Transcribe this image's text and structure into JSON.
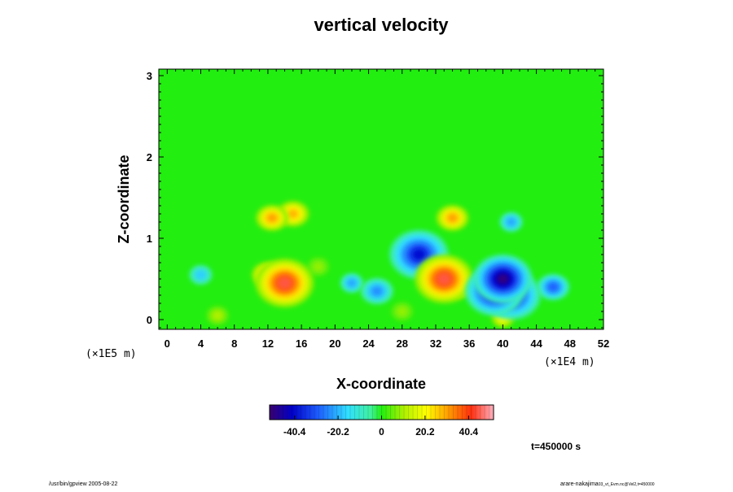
{
  "chart_data": {
    "type": "heatmap",
    "title": "vertical velocity",
    "xlabel": "X-coordinate",
    "ylabel": "Z-coordinate",
    "x_scale_label": "(×1E4 m)",
    "y_scale_label": "(×1E5 m)",
    "xlim": [
      -1,
      52
    ],
    "ylim": [
      -0.12,
      3.08
    ],
    "x_ticks": [
      0,
      4,
      8,
      12,
      16,
      20,
      24,
      28,
      32,
      36,
      40,
      44,
      48,
      52
    ],
    "y_ticks": [
      0,
      1,
      2,
      3
    ],
    "colorbar": {
      "range": [
        -52,
        52
      ],
      "ticks": [
        -40.4,
        -20.2,
        0,
        20.2,
        40.4
      ],
      "tick_labels": [
        "-40.4",
        "-20.2",
        "0",
        "20.2",
        "40.4"
      ]
    },
    "features": [
      {
        "x": 14,
        "z": 0.45,
        "value": 45
      },
      {
        "x": 12,
        "z": 0.55,
        "value": 30
      },
      {
        "x": 33,
        "z": 0.5,
        "value": 45
      },
      {
        "x": 34.5,
        "z": 0.42,
        "value": 35
      },
      {
        "x": 4,
        "z": 0.55,
        "value": -18
      },
      {
        "x": 22,
        "z": 0.45,
        "value": -22
      },
      {
        "x": 25,
        "z": 0.35,
        "value": -25
      },
      {
        "x": 40,
        "z": 0.5,
        "value": -50
      },
      {
        "x": 39,
        "z": 0.35,
        "value": -45
      },
      {
        "x": 41,
        "z": 0.3,
        "value": -40
      },
      {
        "x": 30,
        "z": 0.8,
        "value": -40
      },
      {
        "x": 46,
        "z": 0.4,
        "value": -30
      },
      {
        "x": 12.5,
        "z": 1.25,
        "value": 30
      },
      {
        "x": 15,
        "z": 1.3,
        "value": 28
      },
      {
        "x": 34,
        "z": 1.25,
        "value": 30
      },
      {
        "x": 41,
        "z": 1.2,
        "value": -22
      },
      {
        "x": 18,
        "z": 0.65,
        "value": 8
      },
      {
        "x": 6,
        "z": 0.05,
        "value": 10
      },
      {
        "x": 28,
        "z": 0.1,
        "value": 8
      },
      {
        "x": 40,
        "z": 0.02,
        "value": 20
      }
    ]
  },
  "annotations": {
    "time": "t=450000 s",
    "footer_left": "/usr/bin/gpview 2005-08-22",
    "footer_right": "arare-nakajima",
    "footer_right_small": "03_vt_Evm.nc@Vel2,t=450000"
  }
}
